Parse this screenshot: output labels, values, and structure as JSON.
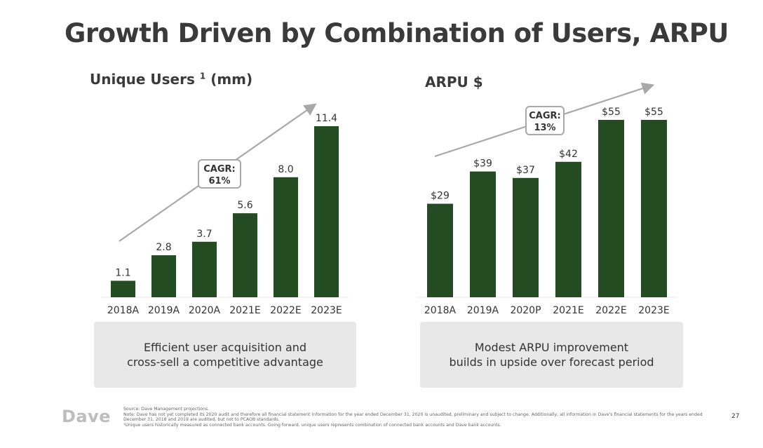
{
  "page": {
    "title": "Growth Driven by Combination of Users, ARPU",
    "page_number": "27",
    "logo_text": "Dave",
    "footnotes": [
      "Source: Dave Management projections.",
      "Note: Dave has not yet completed its 2020 audit and therefore all financial statement information for the year ended December 31, 2020 is unaudited, preliminary and subject to change. Additionally, all information in Dave's financial statements for the years ended",
      "December 31, 2018 and 2019 are audited, but not to PCAOB standards.",
      "¹Unique users historically measured as connected bank accounts. Going forward, unique users represents combination of connected bank accounts and Dave bank accounts."
    ]
  },
  "colors": {
    "bar": "#234c22",
    "arrow": "#a8a8a8",
    "callout_bg": "#e8e8e8"
  },
  "left_panel": {
    "title_main": "Unique Users",
    "title_sup": "1",
    "title_unit": "(mm)",
    "cagr_label": "CAGR:",
    "cagr_value": "61%",
    "callout_lines": [
      "Efficient user acquisition and",
      "cross-sell a competitive advantage"
    ]
  },
  "right_panel": {
    "title": "ARPU $",
    "cagr_label": "CAGR:",
    "cagr_value": "13%",
    "callout_lines": [
      "Modest ARPU improvement",
      "builds in upside over forecast period"
    ]
  },
  "chart_data": [
    {
      "type": "bar",
      "title": "Unique Users 1 (mm)",
      "categories": [
        "2018A",
        "2019A",
        "2020A",
        "2021E",
        "2022E",
        "2023E"
      ],
      "values": [
        1.1,
        2.8,
        3.7,
        5.6,
        8.0,
        11.4
      ],
      "data_labels": [
        "1.1",
        "2.8",
        "3.7",
        "5.6",
        "8.0",
        "11.4"
      ],
      "ylim": [
        0,
        11.4
      ],
      "grid": false,
      "annotation": "CAGR: 61%"
    },
    {
      "type": "bar",
      "title": "ARPU $",
      "categories": [
        "2018A",
        "2019A",
        "2020P",
        "2021E",
        "2022E",
        "2023E"
      ],
      "values": [
        29,
        39,
        37,
        42,
        55,
        55
      ],
      "data_labels": [
        "$29",
        "$39",
        "$37",
        "$42",
        "$55",
        "$55"
      ],
      "ylim": [
        0,
        55
      ],
      "grid": false,
      "annotation": "CAGR: 13%"
    }
  ]
}
